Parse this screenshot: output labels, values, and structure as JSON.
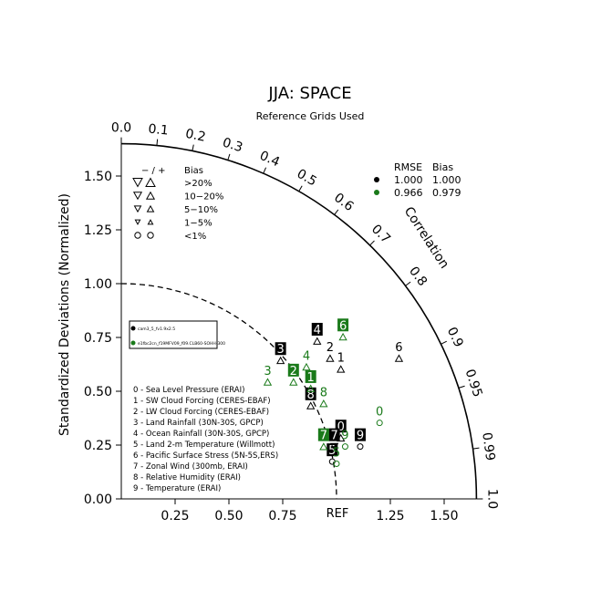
{
  "chart_data": {
    "type": "scatter",
    "subtype": "taylor-diagram",
    "title": "JJA: SPACE",
    "subtitle": "Reference Grids Used",
    "ylabel": "Standardized Deviations (Normalized)",
    "arc_label": "Correlation",
    "ref_label": "REF",
    "std_max": 1.65,
    "std_ticks_y": [
      "0.00",
      "0.25",
      "0.50",
      "0.75",
      "1.00",
      "1.25",
      "1.50"
    ],
    "std_ticks_x": [
      "0.25",
      "0.50",
      "0.75",
      "1.25",
      "1.50"
    ],
    "corr_ticks": [
      "0.0",
      "0.1",
      "0.2",
      "0.3",
      "0.4",
      "0.5",
      "0.6",
      "0.7",
      "0.8",
      "0.9",
      "0.95",
      "0.99",
      "1.0"
    ],
    "legend_stats": {
      "header": [
        "RMSE",
        "Bias"
      ],
      "rows": [
        {
          "rmse": "1.000",
          "bias": "1.000",
          "color": "#000000"
        },
        {
          "rmse": "0.966",
          "bias": "0.979",
          "color": "#1a7a1a"
        }
      ]
    },
    "bias_key": {
      "header": [
        "− / +",
        "Bias"
      ],
      "rows": [
        {
          "label": ">20%",
          "symbol": "tri",
          "size": "xl"
        },
        {
          "label": "10−20%",
          "symbol": "tri",
          "size": "l"
        },
        {
          "label": "5−10%",
          "symbol": "tri",
          "size": "m"
        },
        {
          "label": "1−5%",
          "symbol": "tri",
          "size": "s"
        },
        {
          "label": "<1%",
          "symbol": "circle",
          "size": "m"
        }
      ]
    },
    "model_box": [
      {
        "name": "cam3_5_fv1.9x2.5",
        "color": "#000000"
      },
      {
        "name": "e1fbc2cn_f19MFV09_f09.CLB60-SOHH-300",
        "color": "#1a7a1a"
      }
    ],
    "variables": [
      "0 - Sea Level Pressure (ERAI)",
      "1 - SW Cloud Forcing (CERES-EBAF)",
      "2 - LW Cloud Forcing (CERES-EBAF)",
      "3 - Land Rainfall (30N-30S, GPCP)",
      "4 - Ocean Rainfall (30N-30S, GPCP)",
      "5 - Land 2-m Temperature (Willmott)",
      "6 - Pacific Surface Stress (5N-5S,ERS)",
      "7 - Zonal Wind (300mb, ERAI)",
      "8 - Relative Humidity (ERAI)",
      "9 - Temperature (ERAI)"
    ],
    "series": [
      {
        "name": "cam3_5_fv1.9x2.5",
        "color": "#000000",
        "points": [
          {
            "id": "0",
            "x": 1.02,
            "y": 0.3,
            "style": "box",
            "marker": "tri-up"
          },
          {
            "id": "1",
            "x": 1.02,
            "y": 0.62,
            "style": "text",
            "marker": "tri-up"
          },
          {
            "id": "2",
            "x": 0.97,
            "y": 0.67,
            "style": "text",
            "marker": "tri-up"
          },
          {
            "id": "3",
            "x": 0.74,
            "y": 0.66,
            "style": "box",
            "marker": "tri-up"
          },
          {
            "id": "4",
            "x": 0.91,
            "y": 0.75,
            "style": "box",
            "marker": "tri-up"
          },
          {
            "id": "5",
            "x": 0.98,
            "y": 0.19,
            "style": "box",
            "marker": "circle"
          },
          {
            "id": "6",
            "x": 1.29,
            "y": 0.67,
            "style": "text",
            "marker": "tri-up"
          },
          {
            "id": "7",
            "x": 0.99,
            "y": 0.26,
            "style": "box",
            "marker": "tri-down"
          },
          {
            "id": "8",
            "x": 0.88,
            "y": 0.45,
            "style": "box",
            "marker": "tri-up"
          },
          {
            "id": "9",
            "x": 1.11,
            "y": 0.26,
            "style": "box",
            "marker": "circle"
          }
        ]
      },
      {
        "name": "e1fbc2cn_f19MFV09_f09.CLB60-SOHH-300",
        "color": "#1a7a1a",
        "points": [
          {
            "id": "0",
            "x": 1.2,
            "y": 0.37,
            "style": "text",
            "marker": "circle"
          },
          {
            "id": "1",
            "x": 0.88,
            "y": 0.53,
            "style": "box",
            "marker": "tri-up"
          },
          {
            "id": "2",
            "x": 0.8,
            "y": 0.56,
            "style": "box",
            "marker": "tri-up"
          },
          {
            "id": "3",
            "x": 0.68,
            "y": 0.56,
            "style": "text",
            "marker": "tri-up"
          },
          {
            "id": "4",
            "x": 0.86,
            "y": 0.63,
            "style": "text",
            "marker": "tri-up"
          },
          {
            "id": "5",
            "x": 1.0,
            "y": 0.18,
            "style": "text",
            "marker": "circle"
          },
          {
            "id": "6",
            "x": 1.03,
            "y": 0.77,
            "style": "box",
            "marker": "tri-up"
          },
          {
            "id": "7",
            "x": 0.94,
            "y": 0.26,
            "style": "box",
            "marker": "tri-up"
          },
          {
            "id": "8",
            "x": 0.94,
            "y": 0.46,
            "style": "text",
            "marker": "tri-up"
          },
          {
            "id": "9",
            "x": 1.04,
            "y": 0.26,
            "style": "text",
            "marker": "circle"
          }
        ]
      }
    ]
  }
}
